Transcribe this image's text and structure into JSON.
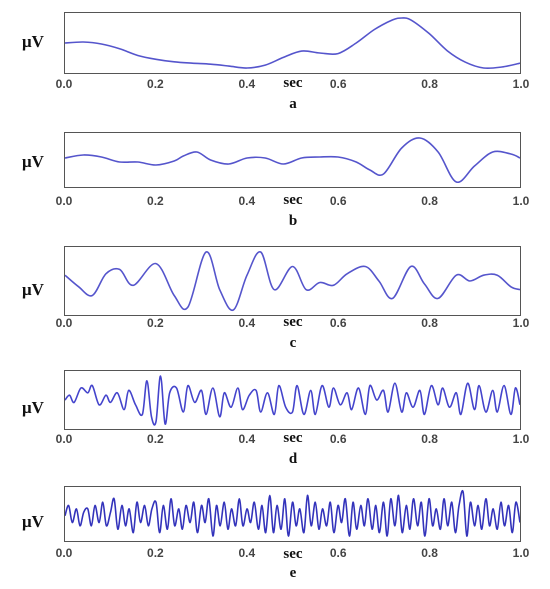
{
  "chart_data": [
    {
      "type": "line",
      "panel_label": "a",
      "ylabel": "μV",
      "xlabel": "sec",
      "xlim": [
        0.0,
        1.0
      ],
      "x_ticks": [
        "0.0",
        "0.2",
        "0.4",
        "0.6",
        "0.8",
        "1.0"
      ],
      "line_color": "#5555cc",
      "series": [
        {
          "x": [
            0.0,
            0.04,
            0.08,
            0.12,
            0.16,
            0.2,
            0.24,
            0.28,
            0.32,
            0.36,
            0.4,
            0.44,
            0.48,
            0.52,
            0.56,
            0.6,
            0.64,
            0.68,
            0.72,
            0.74,
            0.76,
            0.8,
            0.84,
            0.88,
            0.92,
            0.96,
            1.0
          ],
          "values": [
            0.3,
            0.35,
            0.25,
            0.0,
            -0.35,
            -0.55,
            -0.68,
            -0.75,
            -0.8,
            -0.9,
            -1.0,
            -0.85,
            -0.45,
            -0.12,
            -0.22,
            -0.25,
            0.3,
            1.0,
            1.5,
            1.6,
            1.5,
            0.8,
            -0.1,
            -0.7,
            -1.0,
            -0.95,
            -0.75
          ]
        }
      ]
    },
    {
      "type": "line",
      "panel_label": "b",
      "ylabel": "μV",
      "xlabel": "sec",
      "xlim": [
        0.0,
        1.0
      ],
      "x_ticks": [
        "0.0",
        "0.2",
        "0.4",
        "0.6",
        "0.8",
        "1.0"
      ],
      "line_color": "#5555cc",
      "series": [
        {
          "x": [
            0.0,
            0.04,
            0.08,
            0.12,
            0.16,
            0.2,
            0.24,
            0.26,
            0.29,
            0.32,
            0.36,
            0.4,
            0.44,
            0.48,
            0.52,
            0.56,
            0.6,
            0.64,
            0.67,
            0.7,
            0.74,
            0.78,
            0.82,
            0.86,
            0.9,
            0.94,
            0.98,
            1.0
          ],
          "values": [
            0.0,
            0.15,
            0.05,
            -0.2,
            -0.2,
            -0.35,
            -0.15,
            0.1,
            0.3,
            -0.1,
            -0.3,
            0.0,
            0.0,
            -0.3,
            0.0,
            0.05,
            0.05,
            -0.2,
            -0.6,
            -0.8,
            0.5,
            1.0,
            0.3,
            -1.2,
            -0.4,
            0.3,
            0.2,
            0.0
          ]
        }
      ]
    },
    {
      "type": "line",
      "panel_label": "c",
      "ylabel": "μV",
      "xlabel": "sec",
      "xlim": [
        0.0,
        1.0
      ],
      "x_ticks": [
        "0.0",
        "0.2",
        "0.4",
        "0.6",
        "0.8",
        "1.0"
      ],
      "line_color": "#5555cc",
      "series": [
        {
          "x": [
            0.0,
            0.03,
            0.06,
            0.09,
            0.12,
            0.15,
            0.2,
            0.24,
            0.27,
            0.31,
            0.34,
            0.37,
            0.4,
            0.43,
            0.46,
            0.5,
            0.53,
            0.56,
            0.59,
            0.62,
            0.66,
            0.69,
            0.72,
            0.76,
            0.79,
            0.82,
            0.86,
            0.89,
            0.92,
            0.95,
            0.98,
            1.0
          ],
          "values": [
            0.2,
            -0.2,
            -0.5,
            0.25,
            0.4,
            -0.15,
            0.6,
            -0.5,
            -0.9,
            1.0,
            -0.3,
            -1.0,
            0.2,
            1.0,
            -0.3,
            0.5,
            -0.3,
            -0.05,
            -0.15,
            0.25,
            0.5,
            0.0,
            -0.6,
            0.5,
            -0.1,
            -0.6,
            0.2,
            0.0,
            0.2,
            0.2,
            -0.2,
            -0.3
          ]
        }
      ]
    },
    {
      "type": "line",
      "panel_label": "d",
      "ylabel": "μV",
      "xlabel": "sec",
      "xlim": [
        0.0,
        1.0
      ],
      "x_ticks": [
        "0.0",
        "0.2",
        "0.4",
        "0.6",
        "0.8",
        "1.0"
      ],
      "line_color": "#4444cc",
      "series": [
        {
          "x": [
            0.0,
            0.01,
            0.02,
            0.035,
            0.05,
            0.06,
            0.075,
            0.09,
            0.1,
            0.115,
            0.13,
            0.14,
            0.155,
            0.17,
            0.18,
            0.19,
            0.2,
            0.21,
            0.22,
            0.23,
            0.245,
            0.26,
            0.27,
            0.285,
            0.3,
            0.31,
            0.325,
            0.34,
            0.35,
            0.365,
            0.38,
            0.39,
            0.405,
            0.42,
            0.43,
            0.445,
            0.46,
            0.47,
            0.485,
            0.5,
            0.51,
            0.525,
            0.54,
            0.55,
            0.565,
            0.58,
            0.59,
            0.605,
            0.62,
            0.63,
            0.645,
            0.66,
            0.67,
            0.685,
            0.7,
            0.71,
            0.725,
            0.74,
            0.75,
            0.765,
            0.78,
            0.79,
            0.805,
            0.82,
            0.83,
            0.845,
            0.86,
            0.87,
            0.885,
            0.9,
            0.91,
            0.925,
            0.94,
            0.95,
            0.965,
            0.98,
            0.99,
            1.0
          ],
          "values": [
            0.0,
            0.2,
            -0.1,
            0.5,
            0.3,
            0.6,
            -0.2,
            0.2,
            -0.1,
            0.3,
            -0.4,
            0.4,
            -0.2,
            -0.6,
            0.8,
            -0.7,
            -0.9,
            1.0,
            -1.0,
            0.3,
            0.5,
            -0.5,
            0.6,
            -0.1,
            0.4,
            -0.6,
            0.5,
            -0.7,
            0.3,
            -0.3,
            0.5,
            -0.4,
            0.2,
            0.4,
            -0.5,
            0.3,
            -0.6,
            0.6,
            -0.3,
            -0.5,
            0.6,
            -0.6,
            0.4,
            -0.6,
            0.6,
            -0.3,
            0.5,
            -0.2,
            0.3,
            -0.4,
            0.5,
            -0.6,
            0.6,
            0.0,
            0.4,
            -0.5,
            0.7,
            -0.5,
            0.3,
            -0.3,
            0.4,
            -0.6,
            0.6,
            -0.2,
            0.5,
            -0.3,
            0.3,
            -0.6,
            0.7,
            -0.4,
            0.6,
            -0.5,
            0.4,
            -0.5,
            0.6,
            -0.6,
            0.5,
            -0.2
          ]
        }
      ]
    },
    {
      "type": "line",
      "panel_label": "e",
      "ylabel": "μV",
      "xlabel": "sec",
      "xlim": [
        0.0,
        1.0
      ],
      "x_ticks": [
        "0.0",
        "0.2",
        "0.4",
        "0.6",
        "0.8",
        "1.0"
      ],
      "line_color": "#3333bb",
      "series": [
        {
          "x": [
            0.0,
            0.008,
            0.016,
            0.025,
            0.033,
            0.041,
            0.05,
            0.058,
            0.066,
            0.075,
            0.083,
            0.091,
            0.1,
            0.108,
            0.116,
            0.125,
            0.133,
            0.141,
            0.15,
            0.158,
            0.166,
            0.175,
            0.183,
            0.191,
            0.2,
            0.208,
            0.216,
            0.225,
            0.233,
            0.241,
            0.25,
            0.258,
            0.266,
            0.275,
            0.283,
            0.291,
            0.3,
            0.308,
            0.316,
            0.325,
            0.333,
            0.341,
            0.35,
            0.358,
            0.366,
            0.375,
            0.383,
            0.391,
            0.4,
            0.408,
            0.416,
            0.425,
            0.433,
            0.441,
            0.45,
            0.458,
            0.466,
            0.475,
            0.483,
            0.491,
            0.5,
            0.508,
            0.516,
            0.525,
            0.533,
            0.541,
            0.55,
            0.558,
            0.566,
            0.575,
            0.583,
            0.591,
            0.6,
            0.608,
            0.616,
            0.625,
            0.633,
            0.641,
            0.65,
            0.658,
            0.666,
            0.675,
            0.683,
            0.691,
            0.7,
            0.708,
            0.716,
            0.725,
            0.733,
            0.741,
            0.75,
            0.758,
            0.766,
            0.775,
            0.783,
            0.791,
            0.8,
            0.808,
            0.816,
            0.825,
            0.833,
            0.841,
            0.85,
            0.858,
            0.866,
            0.875,
            0.883,
            0.891,
            0.9,
            0.908,
            0.916,
            0.925,
            0.933,
            0.941,
            0.95,
            0.958,
            0.966,
            0.975,
            0.983,
            0.991,
            1.0
          ],
          "values": [
            0.0,
            0.3,
            -0.2,
            0.2,
            -0.3,
            0.1,
            0.2,
            -0.3,
            0.3,
            -0.2,
            0.4,
            -0.3,
            0.1,
            0.5,
            -0.4,
            0.3,
            -0.3,
            0.2,
            -0.5,
            0.4,
            -0.2,
            0.3,
            -0.3,
            0.2,
            0.4,
            -0.5,
            0.3,
            -0.4,
            0.5,
            -0.3,
            0.2,
            -0.4,
            0.3,
            -0.2,
            0.4,
            -0.5,
            0.3,
            -0.2,
            0.5,
            -0.6,
            0.3,
            -0.3,
            0.4,
            -0.4,
            0.2,
            -0.3,
            0.5,
            -0.3,
            0.2,
            -0.2,
            0.4,
            -0.4,
            0.3,
            -0.5,
            0.6,
            -0.5,
            0.3,
            -0.4,
            0.5,
            -0.6,
            0.4,
            -0.3,
            0.2,
            -0.5,
            0.6,
            -0.3,
            0.4,
            -0.4,
            0.2,
            -0.3,
            0.4,
            -0.5,
            0.3,
            -0.2,
            0.5,
            -0.6,
            0.4,
            -0.4,
            0.3,
            -0.3,
            0.5,
            -0.4,
            0.3,
            -0.5,
            0.4,
            -0.6,
            0.5,
            -0.3,
            0.6,
            -0.5,
            0.3,
            -0.4,
            0.5,
            -0.3,
            0.4,
            -0.6,
            0.5,
            -0.3,
            0.2,
            -0.4,
            0.5,
            -0.3,
            0.4,
            -0.5,
            0.3,
            0.7,
            -0.6,
            0.4,
            -0.3,
            0.3,
            -0.4,
            0.5,
            -0.3,
            0.2,
            -0.4,
            0.4,
            -0.3,
            0.3,
            -0.5,
            0.4,
            -0.2
          ]
        }
      ]
    }
  ]
}
